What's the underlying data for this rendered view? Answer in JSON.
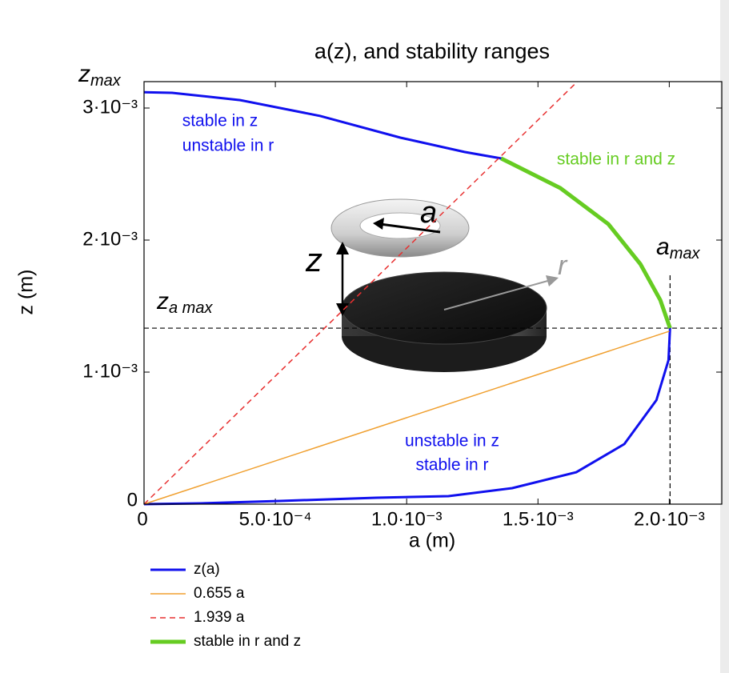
{
  "chart_data": {
    "type": "line",
    "title": "a(z), and stability ranges",
    "x_label": "a (m)",
    "y_label": "z (m)",
    "xlim": [
      0,
      0.0022
    ],
    "ylim": [
      0,
      0.0032
    ],
    "xticks": [
      {
        "value": 0,
        "label": "0"
      },
      {
        "value": 0.0005,
        "label": "5.0·10⁻⁴"
      },
      {
        "value": 0.001,
        "label": "1.0·10⁻³"
      },
      {
        "value": 0.0015,
        "label": "1.5·10⁻³"
      },
      {
        "value": 0.002,
        "label": "2.0·10⁻³"
      }
    ],
    "yticks": [
      {
        "value": 0,
        "label": "0"
      },
      {
        "value": 0.001,
        "label": "1·10⁻³"
      },
      {
        "value": 0.002,
        "label": "2·10⁻³"
      },
      {
        "value": 0.003,
        "label": "3·10⁻³"
      }
    ],
    "series": [
      {
        "name": "z(a)",
        "color": "#1010ee",
        "width": 3,
        "dash": false,
        "x": [
          0,
          0.000107,
          0.000366,
          0.000671,
          0.000976,
          0.00122,
          0.00136,
          0.001585,
          0.001768,
          0.00189,
          0.001966,
          0.002003,
          0.001997,
          0.001951,
          0.001829,
          0.001646,
          0.001402,
          0.001159,
          0.000884,
          0.000518,
          0.000213,
          0
        ],
        "values": [
          0.00312,
          0.003115,
          0.00306,
          0.00294,
          0.002776,
          0.002667,
          0.002618,
          0.002394,
          0.002121,
          0.001818,
          0.001545,
          0.001333,
          0.001091,
          0.000788,
          0.000455,
          0.000242,
          0.000121,
          6.06e-05,
          4.85e-05,
          2.42e-05,
          6e-06,
          0
        ]
      },
      {
        "name": "0.655 a",
        "color": "#f0a030",
        "width": 1.5,
        "dash": false,
        "x": [
          0,
          0.002
        ],
        "values": [
          0,
          0.00131
        ]
      },
      {
        "name": "1.939 a",
        "color": "#e83030",
        "width": 1.5,
        "dash": true,
        "x": [
          0,
          0.00165
        ],
        "values": [
          0,
          0.0032
        ]
      },
      {
        "name": "stable in r and z",
        "color": "#66cc22",
        "width": 5,
        "dash": false,
        "x": [
          0.00136,
          0.001585,
          0.001768,
          0.00189,
          0.001966,
          0.002003
        ],
        "values": [
          0.002618,
          0.002394,
          0.002121,
          0.001818,
          0.001545,
          0.001333
        ]
      }
    ],
    "z_a_max": 0.001333,
    "a_max": 0.002003,
    "z_max_label": {
      "base": "z",
      "sub": "max"
    },
    "z_a_max_label": {
      "base": "z",
      "sub": "a max"
    },
    "a_max_label": {
      "base": "a",
      "sub": "max"
    },
    "annotations": [
      {
        "text": "stable in z",
        "color": "#1010ee"
      },
      {
        "text": "unstable in r",
        "color": "#1010ee"
      },
      {
        "text": "stable in r and z",
        "color": "#66cc22"
      },
      {
        "text": "unstable in z",
        "color": "#1010ee"
      },
      {
        "text": "stable in r",
        "color": "#1010ee"
      }
    ],
    "inset_labels": [
      "a",
      "z",
      "r"
    ]
  }
}
